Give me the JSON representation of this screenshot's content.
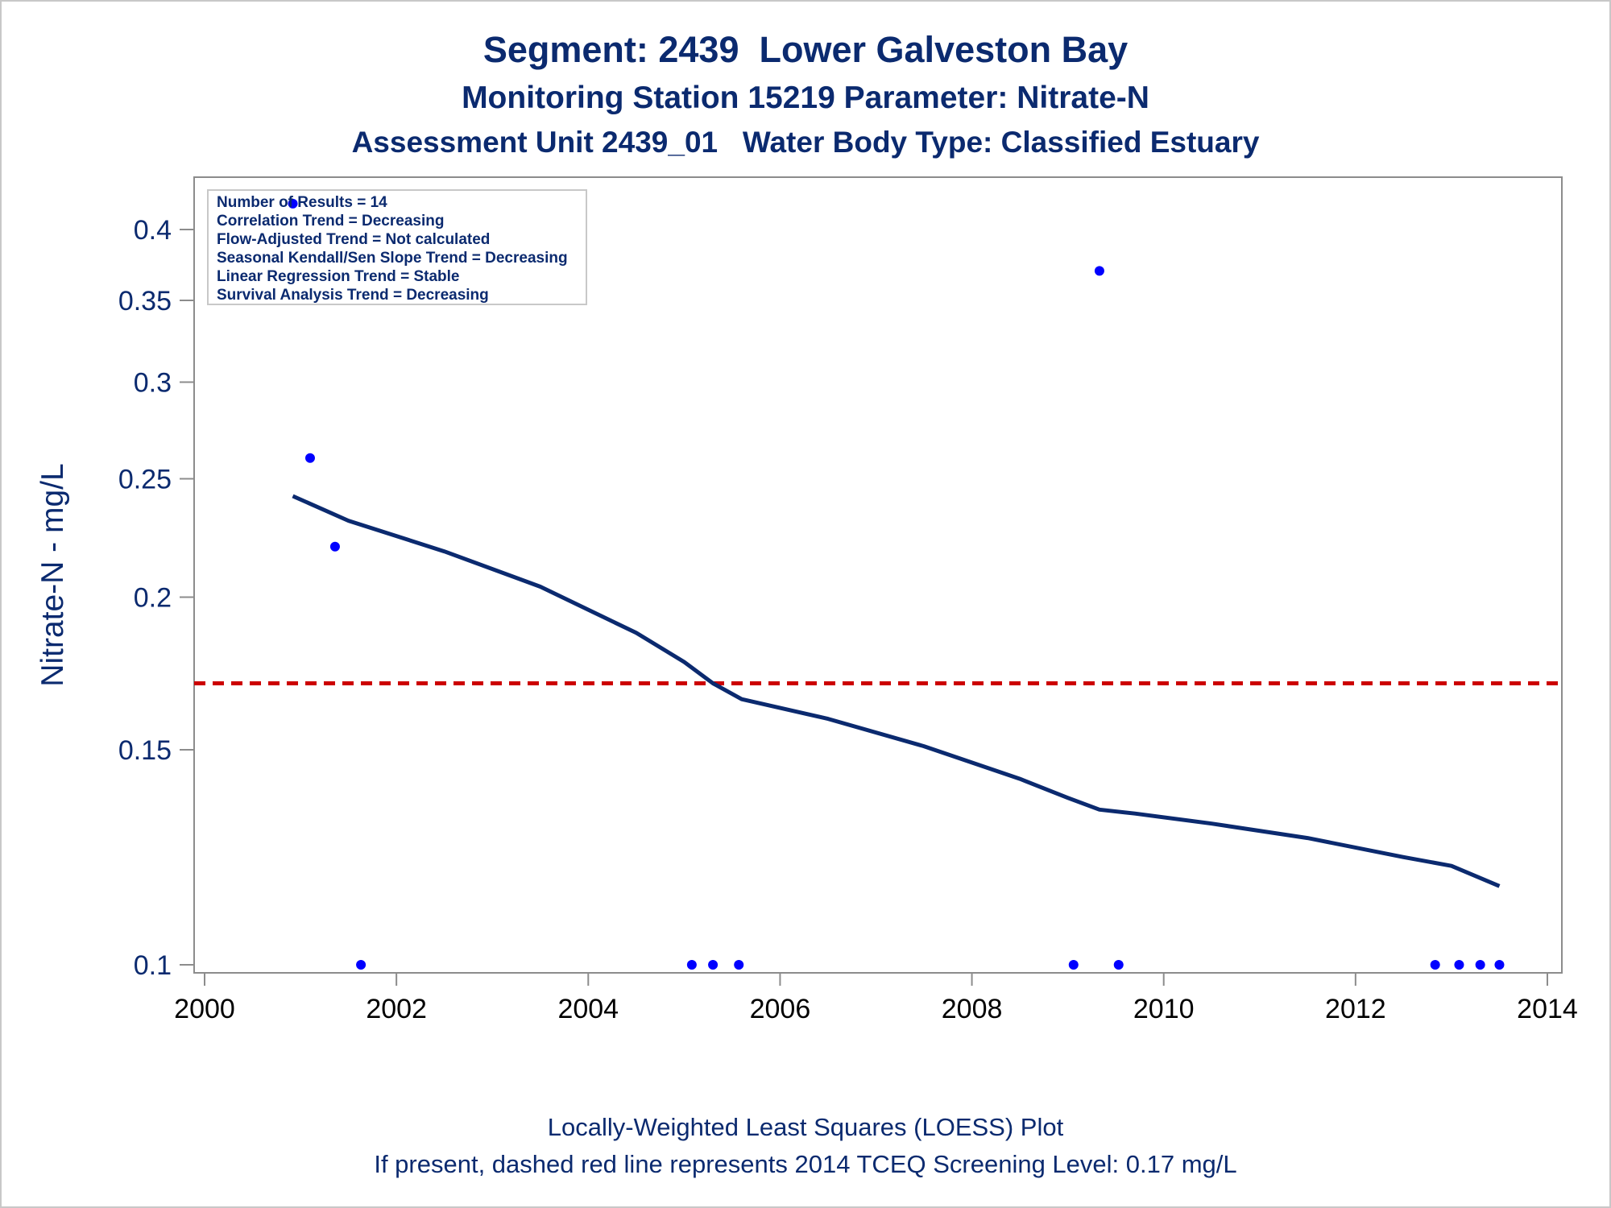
{
  "titles": {
    "line1": "Segment: 2439  Lower Galveston Bay",
    "line2": "Monitoring Station 15219 Parameter: Nitrate-N",
    "line3": "Assessment Unit 2439_01   Water Body Type: Classified Estuary"
  },
  "footnotes": {
    "line1": "Locally-Weighted Least Squares (LOESS) Plot",
    "line2": "If present, dashed red line represents 2014 TCEQ Screening Level: 0.17 mg/L"
  },
  "legend": [
    "Number of Results = 14",
    "Correlation Trend = Decreasing",
    "Flow-Adjusted Trend = Not calculated",
    "Seasonal Kendall/Sen Slope Trend = Decreasing",
    "Linear Regression Trend = Stable",
    "Survival Analysis Trend = Decreasing"
  ],
  "colors": {
    "text": "#0b2a6f",
    "points": "#0000ff",
    "loess": "#0b2a6f",
    "screening": "#cc0000",
    "axis": "#8c8c8c"
  },
  "chart_data": {
    "type": "scatter",
    "xlabel": "",
    "ylabel": "Nitrate-N - mg/L",
    "xlim": [
      2000,
      2014
    ],
    "ylim": [
      0.098,
      0.43
    ],
    "yscale": "log",
    "xticks": [
      2000,
      2002,
      2004,
      2006,
      2008,
      2010,
      2012,
      2014
    ],
    "yticks": [
      {
        "value": 0.1,
        "label": "0.1"
      },
      {
        "value": 0.15,
        "label": "0.15"
      },
      {
        "value": 0.2,
        "label": "0.2"
      },
      {
        "value": 0.25,
        "label": "0.25"
      },
      {
        "value": 0.3,
        "label": "0.3"
      },
      {
        "value": 0.35,
        "label": "0.35"
      },
      {
        "value": 0.4,
        "label": "0.4"
      }
    ],
    "grid": false,
    "legend_position": "top-left",
    "points": [
      {
        "x": 2000.92,
        "y": 0.42
      },
      {
        "x": 2001.1,
        "y": 0.26
      },
      {
        "x": 2001.36,
        "y": 0.22
      },
      {
        "x": 2001.63,
        "y": 0.1
      },
      {
        "x": 2005.08,
        "y": 0.1
      },
      {
        "x": 2005.3,
        "y": 0.1
      },
      {
        "x": 2005.57,
        "y": 0.1
      },
      {
        "x": 2009.06,
        "y": 0.1
      },
      {
        "x": 2009.33,
        "y": 0.37
      },
      {
        "x": 2009.53,
        "y": 0.1
      },
      {
        "x": 2012.83,
        "y": 0.1
      },
      {
        "x": 2013.08,
        "y": 0.1
      },
      {
        "x": 2013.3,
        "y": 0.1
      },
      {
        "x": 2013.5,
        "y": 0.1
      }
    ],
    "loess": [
      {
        "x": 2000.92,
        "y": 0.242
      },
      {
        "x": 2001.5,
        "y": 0.231
      },
      {
        "x": 2002.5,
        "y": 0.218
      },
      {
        "x": 2003.5,
        "y": 0.204
      },
      {
        "x": 2004.5,
        "y": 0.187
      },
      {
        "x": 2005.0,
        "y": 0.177
      },
      {
        "x": 2005.3,
        "y": 0.17
      },
      {
        "x": 2005.6,
        "y": 0.165
      },
      {
        "x": 2006.5,
        "y": 0.159
      },
      {
        "x": 2007.5,
        "y": 0.151
      },
      {
        "x": 2008.5,
        "y": 0.142
      },
      {
        "x": 2009.0,
        "y": 0.137
      },
      {
        "x": 2009.33,
        "y": 0.134
      },
      {
        "x": 2009.7,
        "y": 0.133
      },
      {
        "x": 2010.5,
        "y": 0.1305
      },
      {
        "x": 2011.5,
        "y": 0.127
      },
      {
        "x": 2012.5,
        "y": 0.1225
      },
      {
        "x": 2013.0,
        "y": 0.1205
      },
      {
        "x": 2013.5,
        "y": 0.116
      }
    ],
    "screening_level": 0.17
  }
}
